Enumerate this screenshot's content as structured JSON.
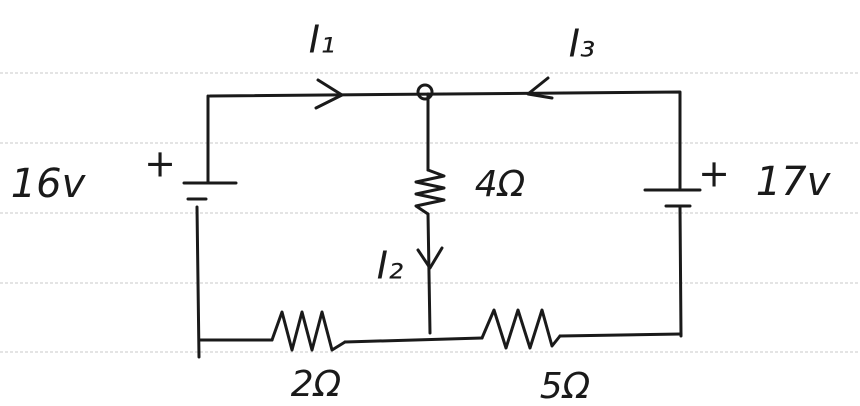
{
  "labels": {
    "current_1": "I₁",
    "current_2": "I₂",
    "current_3": "I₃",
    "source_left": "16v",
    "source_right": "17v",
    "plus_left": "+",
    "plus_right": "+",
    "resistor_middle": "4Ω",
    "resistor_left": "2Ω",
    "resistor_right": "5Ω"
  }
}
